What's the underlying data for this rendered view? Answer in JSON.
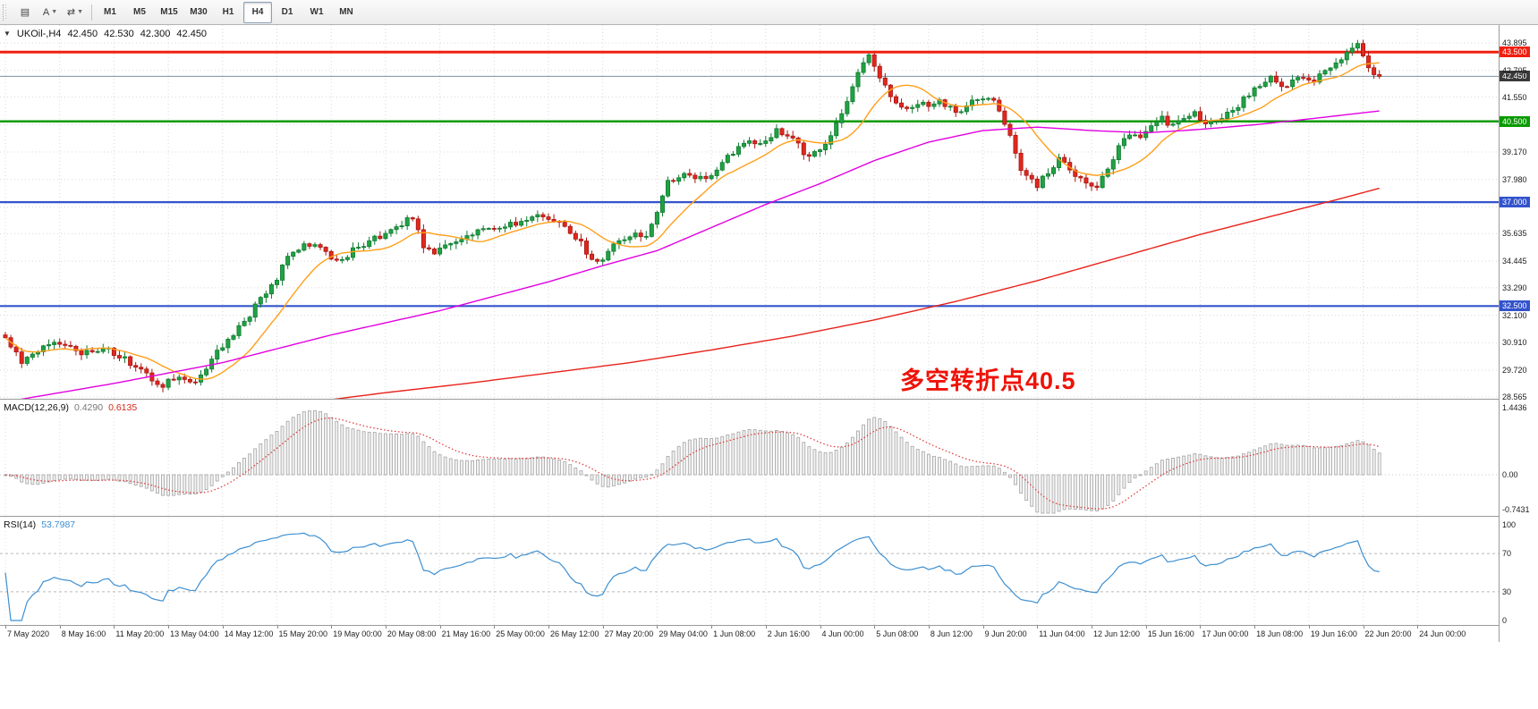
{
  "toolbar": {
    "icon_buttons": [
      {
        "name": "indicators",
        "glyph": "▤",
        "caret": false
      },
      {
        "name": "text-annotation",
        "glyph": "A",
        "caret": true
      },
      {
        "name": "cursor-tools",
        "glyph": "⇄",
        "caret": true
      }
    ],
    "timeframes": [
      {
        "label": "M1",
        "active": false
      },
      {
        "label": "M5",
        "active": false
      },
      {
        "label": "M15",
        "active": false
      },
      {
        "label": "M30",
        "active": false
      },
      {
        "label": "H1",
        "active": false
      },
      {
        "label": "H4",
        "active": true
      },
      {
        "label": "D1",
        "active": false
      },
      {
        "label": "W1",
        "active": false
      },
      {
        "label": "MN",
        "active": false
      }
    ]
  },
  "main_chart": {
    "symbol_header": {
      "symbol": "UKOil-,H4",
      "open": "42.450",
      "high": "42.530",
      "low": "42.300",
      "close": "42.450"
    },
    "annotation": {
      "text": "多空转折点40.5",
      "color": "#ee1208"
    },
    "scale_ticks": [
      {
        "label": "43.895",
        "value": 43.895
      },
      {
        "label": "42.705",
        "value": 42.705
      },
      {
        "label": "41.550",
        "value": 41.55
      },
      {
        "label": "40.360",
        "value": 40.36
      },
      {
        "label": "39.170",
        "value": 39.17
      },
      {
        "label": "37.980",
        "value": 37.98
      },
      {
        "label": "36.790",
        "value": 36.79
      },
      {
        "label": "35.635",
        "value": 35.635
      },
      {
        "label": "34.445",
        "value": 34.445
      },
      {
        "label": "33.290",
        "value": 33.29
      },
      {
        "label": "32.100",
        "value": 32.1
      },
      {
        "label": "30.910",
        "value": 30.91
      },
      {
        "label": "29.720",
        "value": 29.72
      },
      {
        "label": "28.565",
        "value": 28.565
      }
    ],
    "levels": [
      {
        "value": 43.5,
        "label": "43.500",
        "color": "#f02011",
        "width": 3
      },
      {
        "value": 40.5,
        "label": "40.500",
        "color": "#0a9a00",
        "width": 2.5
      },
      {
        "value": 37.0,
        "label": "37.000",
        "color": "#3353cc",
        "width": 2.2
      },
      {
        "value": 32.5,
        "label": "32.500",
        "color": "#3353cc",
        "width": 2.2
      }
    ],
    "current_price": {
      "value": 42.45,
      "label": "42.450",
      "line_color": "#7d93a5",
      "badge_bg": "#3a3a3a"
    }
  },
  "macd": {
    "title": "MACD(12,26,9)",
    "value_main": "0.4290",
    "value_signal": "0.6135",
    "axis": [
      {
        "label": "1.4436",
        "value": 1.4436
      },
      {
        "label": "0.00",
        "value": 0
      },
      {
        "label": "-0.7431",
        "value": -0.7431
      }
    ],
    "histogram_color": "#ababab",
    "signal_color": "#e03131"
  },
  "rsi": {
    "title": "RSI(14)",
    "value": "53.7987",
    "axis": [
      {
        "label": "100",
        "value": 100
      },
      {
        "label": "70",
        "value": 70
      },
      {
        "label": "30",
        "value": 30
      },
      {
        "label": "0",
        "value": 0
      }
    ],
    "levels": [
      70,
      30
    ],
    "line_color": "#3d8fd1"
  },
  "time_axis": {
    "labels": [
      "7 May 2020",
      "8 May 16:00",
      "11 May 20:00",
      "13 May 04:00",
      "14 May 12:00",
      "15 May 20:00",
      "19 May 00:00",
      "20 May 08:00",
      "21 May 16:00",
      "25 May 00:00",
      "26 May 12:00",
      "27 May 20:00",
      "29 May 04:00",
      "1 Jun 08:00",
      "2 Jun 16:00",
      "4 Jun 00:00",
      "5 Jun 08:00",
      "8 Jun 12:00",
      "9 Jun 20:00",
      "11 Jun 04:00",
      "12 Jun 12:00",
      "15 Jun 16:00",
      "17 Jun 00:00",
      "18 Jun 08:00",
      "19 Jun 16:00",
      "22 Jun 20:00",
      "24 Jun 00:00"
    ]
  },
  "chart_data": {
    "type": "candlestick",
    "symbol": "UKOil",
    "timeframe": "H4",
    "visible_range": {
      "start": "7 May 2020",
      "end": "24 Jun 2020 00:00"
    },
    "ylim": [
      28.565,
      43.895
    ],
    "candle_count": 254,
    "last_close": 42.45,
    "up_color": "#21a244",
    "down_color": "#e0281e",
    "price_waypoints": [
      [
        0,
        31.2
      ],
      [
        3,
        30.1
      ],
      [
        6,
        30.6
      ],
      [
        10,
        30.9
      ],
      [
        14,
        30.4
      ],
      [
        18,
        30.7
      ],
      [
        22,
        30.2
      ],
      [
        26,
        29.5
      ],
      [
        29,
        29.1
      ],
      [
        32,
        29.5
      ],
      [
        35,
        29.2
      ],
      [
        38,
        30.2
      ],
      [
        41,
        31.0
      ],
      [
        44,
        31.8
      ],
      [
        47,
        32.8
      ],
      [
        49,
        33.3
      ],
      [
        52,
        34.6
      ],
      [
        55,
        35.2
      ],
      [
        58,
        35.0
      ],
      [
        61,
        34.4
      ],
      [
        64,
        34.9
      ],
      [
        67,
        35.3
      ],
      [
        70,
        35.6
      ],
      [
        73,
        36.1
      ],
      [
        75,
        36.3
      ],
      [
        77,
        35.1
      ],
      [
        79,
        34.7
      ],
      [
        82,
        35.3
      ],
      [
        85,
        35.6
      ],
      [
        88,
        35.8
      ],
      [
        91,
        35.9
      ],
      [
        94,
        36.1
      ],
      [
        97,
        36.4
      ],
      [
        100,
        36.2
      ],
      [
        103,
        36.0
      ],
      [
        106,
        35.2
      ],
      [
        108,
        34.5
      ],
      [
        110,
        34.6
      ],
      [
        113,
        35.4
      ],
      [
        116,
        35.6
      ],
      [
        118,
        35.5
      ],
      [
        120,
        36.6
      ],
      [
        122,
        37.9
      ],
      [
        125,
        38.3
      ],
      [
        128,
        38.0
      ],
      [
        131,
        38.4
      ],
      [
        134,
        39.2
      ],
      [
        137,
        39.6
      ],
      [
        140,
        39.6
      ],
      [
        142,
        40.2
      ],
      [
        145,
        39.7
      ],
      [
        148,
        38.9
      ],
      [
        151,
        39.5
      ],
      [
        154,
        40.8
      ],
      [
        156,
        42.0
      ],
      [
        158,
        43.1
      ],
      [
        159,
        43.4
      ],
      [
        161,
        42.3
      ],
      [
        163,
        41.6
      ],
      [
        166,
        41.0
      ],
      [
        169,
        41.2
      ],
      [
        172,
        41.4
      ],
      [
        175,
        40.9
      ],
      [
        178,
        41.3
      ],
      [
        181,
        41.6
      ],
      [
        183,
        41.0
      ],
      [
        185,
        39.8
      ],
      [
        187,
        38.4
      ],
      [
        190,
        37.7
      ],
      [
        192,
        38.3
      ],
      [
        194,
        38.9
      ],
      [
        196,
        38.4
      ],
      [
        199,
        37.8
      ],
      [
        201,
        37.6
      ],
      [
        203,
        38.5
      ],
      [
        205,
        39.4
      ],
      [
        207,
        39.9
      ],
      [
        209,
        39.7
      ],
      [
        211,
        40.2
      ],
      [
        213,
        40.6
      ],
      [
        215,
        40.3
      ],
      [
        217,
        40.5
      ],
      [
        219,
        40.8
      ],
      [
        221,
        40.5
      ],
      [
        223,
        40.4
      ],
      [
        225,
        40.9
      ],
      [
        227,
        41.2
      ],
      [
        229,
        41.7
      ],
      [
        231,
        42.1
      ],
      [
        233,
        42.4
      ],
      [
        235,
        42.0
      ],
      [
        237,
        42.2
      ],
      [
        239,
        42.5
      ],
      [
        241,
        42.3
      ],
      [
        243,
        42.7
      ],
      [
        245,
        43.0
      ],
      [
        247,
        43.4
      ],
      [
        249,
        43.8
      ],
      [
        250,
        43.4
      ],
      [
        251,
        42.9
      ],
      [
        252,
        42.6
      ],
      [
        253,
        42.45
      ]
    ],
    "moving_averages": [
      {
        "name": "MA-fast",
        "color": "#ff9f1a",
        "period": 12,
        "source": "computed-sma"
      },
      {
        "name": "MA-mid",
        "color": "#e100e1, waypoints",
        "waypoints": [
          [
            0,
            28.35
          ],
          [
            20,
            29.15
          ],
          [
            40,
            30.05
          ],
          [
            60,
            31.25
          ],
          [
            80,
            32.3
          ],
          [
            100,
            33.55
          ],
          [
            110,
            34.25
          ],
          [
            120,
            34.9
          ],
          [
            130,
            35.9
          ],
          [
            140,
            36.9
          ],
          [
            150,
            37.8
          ],
          [
            160,
            38.8
          ],
          [
            170,
            39.6
          ],
          [
            180,
            40.1
          ],
          [
            190,
            40.25
          ],
          [
            200,
            40.1
          ],
          [
            210,
            40.0
          ],
          [
            220,
            40.15
          ],
          [
            230,
            40.35
          ],
          [
            240,
            40.6
          ],
          [
            253,
            40.95
          ]
        ]
      },
      {
        "name": "MA-slow",
        "color": "#e8221a, waypoints",
        "waypoints": [
          [
            0,
            27.1
          ],
          [
            30,
            27.55
          ],
          [
            55,
            28.3
          ],
          [
            70,
            28.75
          ],
          [
            85,
            29.15
          ],
          [
            100,
            29.6
          ],
          [
            115,
            30.05
          ],
          [
            130,
            30.6
          ],
          [
            145,
            31.2
          ],
          [
            160,
            31.9
          ],
          [
            175,
            32.7
          ],
          [
            190,
            33.6
          ],
          [
            205,
            34.6
          ],
          [
            220,
            35.6
          ],
          [
            235,
            36.5
          ],
          [
            245,
            37.1
          ],
          [
            253,
            37.6
          ]
        ]
      }
    ]
  }
}
